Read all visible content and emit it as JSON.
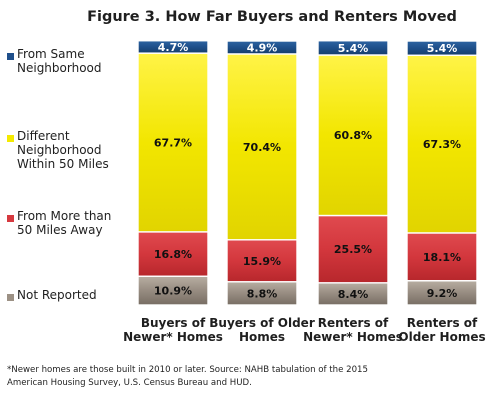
{
  "chart_data": {
    "type": "bar",
    "stacked": true,
    "title": "Figure 3.  How Far Buyers and Renters Moved",
    "categories": [
      [
        "Buyers of",
        "Newer* Homes"
      ],
      [
        "Buyers of Older",
        "Homes"
      ],
      [
        "Renters of",
        "Newer* Homes"
      ],
      [
        "Renters of",
        "Older Homes"
      ]
    ],
    "series": [
      {
        "name": [
          "Not Reported"
        ],
        "color": "#9c9185",
        "values": [
          10.9,
          8.8,
          8.4,
          9.2
        ],
        "labels": [
          "10.9%",
          "8.8%",
          "8.4%",
          "9.2%"
        ]
      },
      {
        "name": [
          "From More than",
          "50 Miles Away"
        ],
        "color": "#d6393f",
        "values": [
          16.8,
          15.9,
          25.5,
          18.1
        ],
        "labels": [
          "16.8%",
          "15.9%",
          "25.5%",
          "18.1%"
        ]
      },
      {
        "name": [
          "Different",
          "Neighborhood",
          "Within 50 Miles"
        ],
        "color": "#f4ea00",
        "values": [
          67.7,
          70.4,
          60.8,
          67.3
        ],
        "labels": [
          "67.7%",
          "70.4%",
          "60.8%",
          "67.3%"
        ]
      },
      {
        "name": [
          "From Same",
          "Neighborhood"
        ],
        "color": "#1f4f8b",
        "values": [
          4.7,
          4.9,
          5.4,
          5.4
        ],
        "labels": [
          "4.7%",
          "4.9%",
          "5.4%",
          "5.4%"
        ]
      }
    ],
    "legend_position": "left",
    "grid": false,
    "footnote": [
      "*Newer  homes are those built in 2010 or later.   Source: NAHB tabulation of the 2015",
      "American Housing Survey,  U.S. Census Bureau and HUD."
    ]
  }
}
